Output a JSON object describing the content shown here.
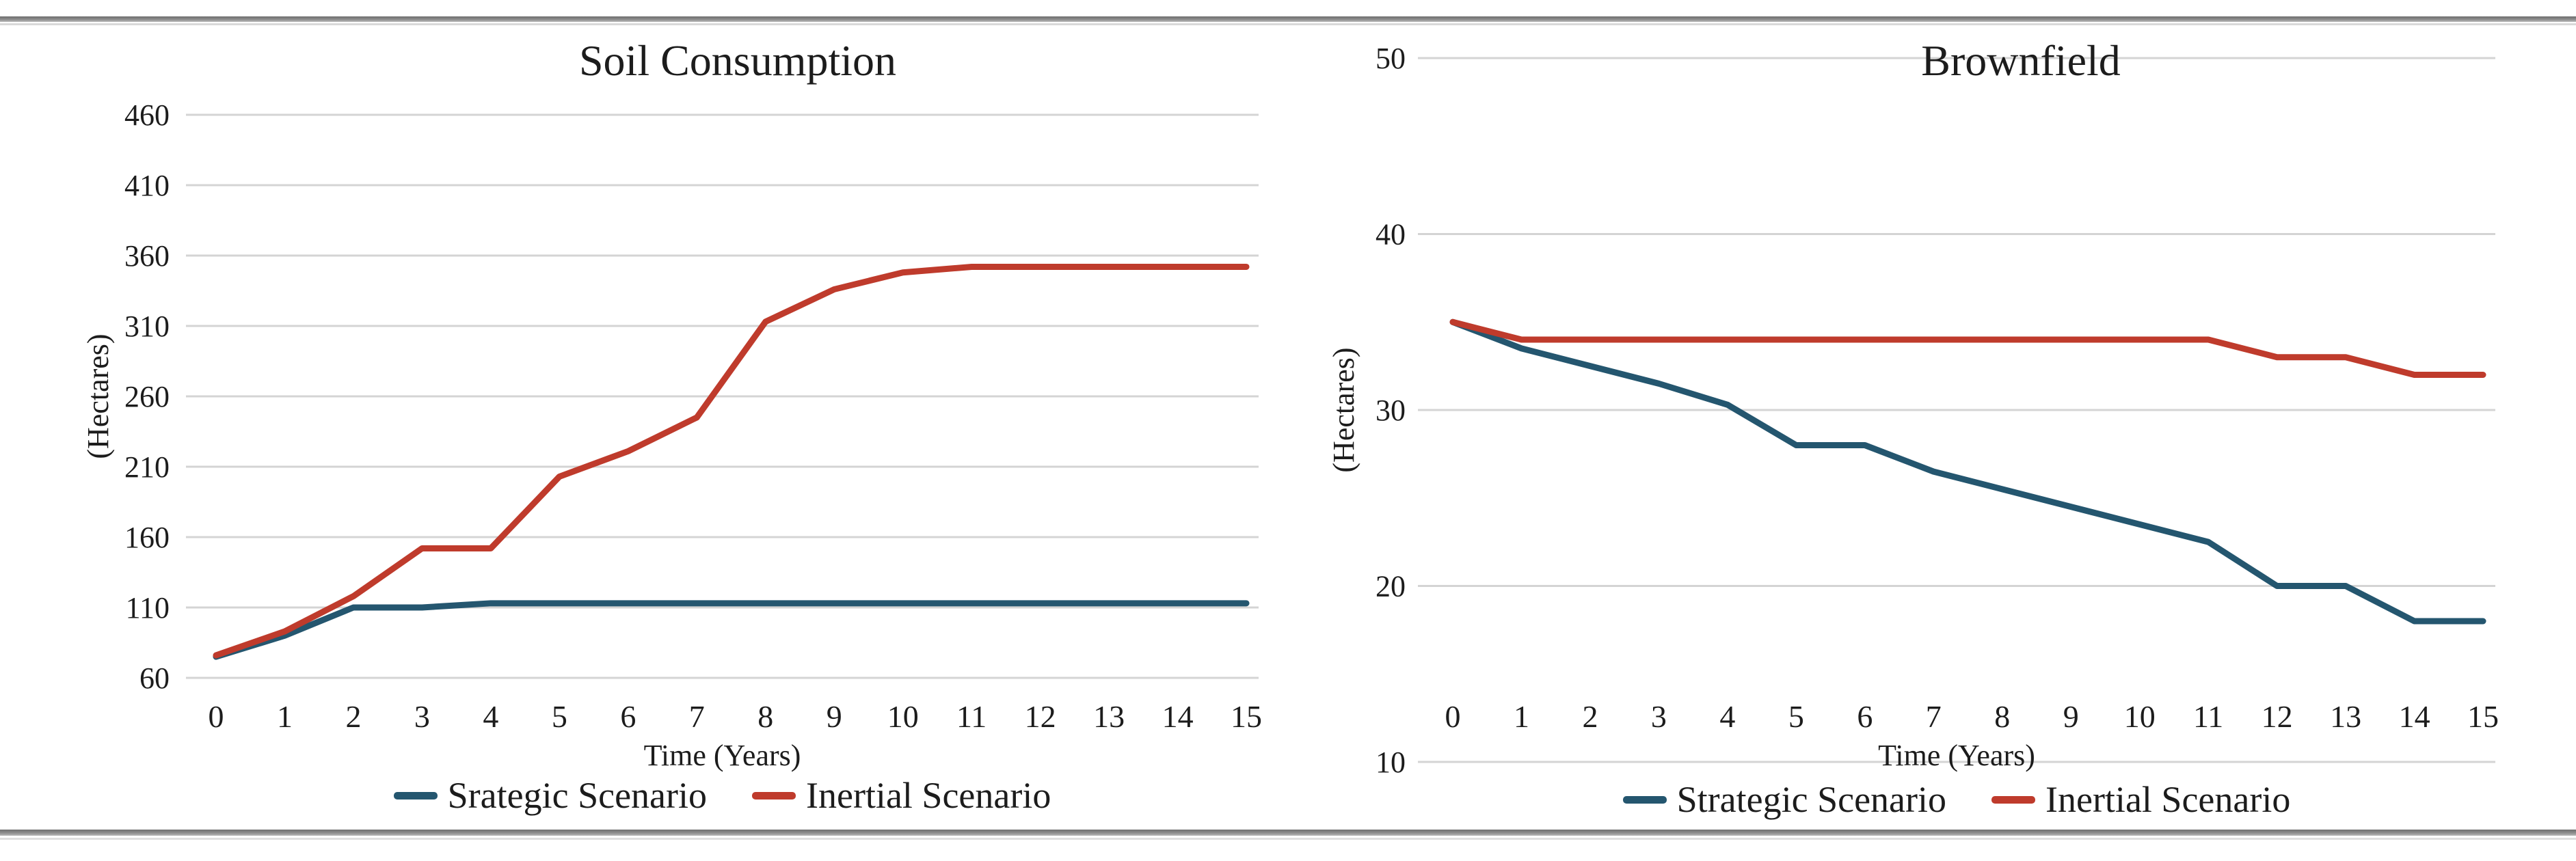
{
  "figure": {
    "xlabel": "Time (Years)",
    "ylabel": "(Hectares)"
  },
  "colors": {
    "strategic_blue": "#24566f",
    "inertial_red": "#bf3b2c",
    "gridline_gray": "#d4d4d4",
    "rule_gray": "#8d8d8d",
    "text_dark": "#1c1c1c"
  },
  "chart_data": [
    {
      "type": "line",
      "title": "Soil Consumption",
      "xlabel": "Time (Years)",
      "ylabel": "(Hectares)",
      "x": [
        0,
        1,
        2,
        3,
        4,
        5,
        6,
        7,
        8,
        9,
        10,
        11,
        12,
        13,
        14,
        15
      ],
      "ylim": [
        60,
        460
      ],
      "yticks": [
        460,
        410,
        360,
        310,
        260,
        210,
        160,
        110,
        60
      ],
      "grid": true,
      "legend_position": "bottom",
      "series": [
        {
          "name": "Srategic Scenario",
          "color": "#24566f",
          "values": [
            75,
            90,
            110,
            110,
            113,
            113,
            113,
            113,
            113,
            113,
            113,
            113,
            113,
            113,
            113,
            113
          ]
        },
        {
          "name": "Inertial Scenario",
          "color": "#bf3b2c",
          "values": [
            76,
            93,
            118,
            152,
            152,
            203,
            221,
            245,
            313,
            336,
            348,
            352,
            352,
            352,
            352,
            352
          ]
        }
      ]
    },
    {
      "type": "line",
      "title": "Brownfield",
      "xlabel": "Time (Years)",
      "ylabel": "(Hectares)",
      "x": [
        0,
        1,
        2,
        3,
        4,
        5,
        6,
        7,
        8,
        9,
        10,
        11,
        12,
        13,
        14,
        15
      ],
      "ylim": [
        10,
        50
      ],
      "yticks": [
        50,
        40,
        30,
        20,
        10
      ],
      "grid": true,
      "legend_position": "bottom",
      "series": [
        {
          "name": "Strategic Scenario",
          "color": "#24566f",
          "values": [
            35,
            33.5,
            32.5,
            31.5,
            30.3,
            28,
            28,
            26.5,
            25.5,
            24.5,
            23.5,
            22.5,
            20,
            20,
            18,
            18
          ]
        },
        {
          "name": "Inertial Scenario",
          "color": "#bf3b2c",
          "values": [
            35,
            34,
            34,
            34,
            34,
            34,
            34,
            34,
            34,
            34,
            34,
            34,
            33,
            33,
            32,
            32
          ]
        }
      ]
    }
  ]
}
